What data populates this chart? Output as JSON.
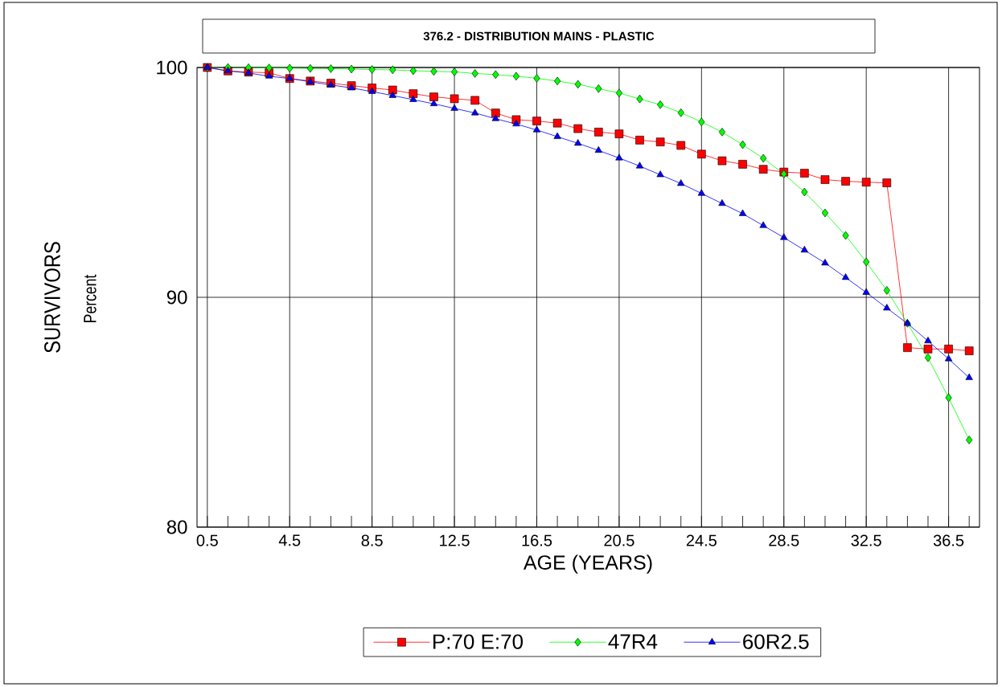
{
  "chart_data": {
    "type": "line",
    "title": "376.2 - DISTRIBUTION MAINS - PLASTIC",
    "xlabel": "AGE (YEARS)",
    "ylabel": "SURVIVORS",
    "annotations": [
      "Percent"
    ],
    "x": [
      0.5,
      1.5,
      2.5,
      3.5,
      4.5,
      5.5,
      6.5,
      7.5,
      8.5,
      9.5,
      10.5,
      11.5,
      12.5,
      13.5,
      14.5,
      15.5,
      16.5,
      17.5,
      18.5,
      19.5,
      20.5,
      21.5,
      22.5,
      23.5,
      24.5,
      25.5,
      26.5,
      27.5,
      28.5,
      29.5,
      30.5,
      31.5,
      32.5,
      33.5,
      34.5,
      35.5,
      36.5,
      37.5
    ],
    "series": [
      {
        "name": "P:70 E:70",
        "color": "#ff0000",
        "marker": "square",
        "values": [
          100,
          99.85,
          99.8,
          99.77,
          99.52,
          99.41,
          99.32,
          99.21,
          99.11,
          99.02,
          98.86,
          98.72,
          98.64,
          98.57,
          98.02,
          97.73,
          97.67,
          97.58,
          97.34,
          97.19,
          97.11,
          96.84,
          96.76,
          96.61,
          96.23,
          95.94,
          95.79,
          95.57,
          95.45,
          95.4,
          95.12,
          95.05,
          95.01,
          94.98,
          87.81,
          87.75,
          87.75,
          87.67
        ]
      },
      {
        "name": "47R4",
        "color": "#00ff00",
        "marker": "diamond",
        "values": [
          100,
          100,
          99.99,
          99.98,
          99.97,
          99.96,
          99.95,
          99.93,
          99.91,
          99.9,
          99.86,
          99.83,
          99.81,
          99.74,
          99.69,
          99.62,
          99.53,
          99.41,
          99.27,
          99.08,
          98.89,
          98.63,
          98.38,
          98.03,
          97.63,
          97.19,
          96.64,
          96.05,
          95.37,
          94.58,
          93.67,
          92.69,
          91.54,
          90.3,
          88.87,
          87.37,
          85.63,
          83.79
        ]
      },
      {
        "name": "60R2.5",
        "color": "#0000ff",
        "marker": "triangle",
        "values": [
          100,
          99.85,
          99.76,
          99.62,
          99.52,
          99.38,
          99.24,
          99.11,
          98.95,
          98.78,
          98.6,
          98.42,
          98.22,
          98.02,
          97.77,
          97.54,
          97.28,
          96.99,
          96.7,
          96.39,
          96.06,
          95.71,
          95.33,
          94.95,
          94.52,
          94.08,
          93.64,
          93.12,
          92.6,
          92.05,
          91.49,
          90.86,
          90.21,
          89.53,
          88.86,
          88.1,
          87.32,
          86.5
        ]
      }
    ],
    "xlim": [
      0,
      38
    ],
    "ylim": [
      80,
      100
    ],
    "xticks": [
      0.5,
      {
        "value": 1.5,
        "label": null
      },
      {
        "value": 2.5,
        "label": null
      },
      {
        "value": 3.5,
        "label": null
      },
      4.5,
      {
        "value": 5.5,
        "label": null
      },
      {
        "value": 6.5,
        "label": null
      },
      {
        "value": 7.5,
        "label": null
      },
      8.5,
      {
        "value": 9.5,
        "label": null
      },
      {
        "value": 10.5,
        "label": null
      },
      {
        "value": 11.5,
        "label": null
      },
      12.5,
      {
        "value": 13.5,
        "label": null
      },
      {
        "value": 14.5,
        "label": null
      },
      {
        "value": 15.5,
        "label": null
      },
      16.5,
      {
        "value": 17.5,
        "label": null
      },
      {
        "value": 18.5,
        "label": null
      },
      {
        "value": 19.5,
        "label": null
      },
      20.5,
      {
        "value": 21.5,
        "label": null
      },
      {
        "value": 22.5,
        "label": null
      },
      {
        "value": 23.5,
        "label": null
      },
      24.5,
      {
        "value": 25.5,
        "label": null
      },
      {
        "value": 26.5,
        "label": null
      },
      {
        "value": 27.5,
        "label": null
      },
      28.5,
      {
        "value": 29.5,
        "label": null
      },
      {
        "value": 30.5,
        "label": null
      },
      {
        "value": 31.5,
        "label": null
      },
      32.5,
      {
        "value": 33.5,
        "label": null
      },
      {
        "value": 34.5,
        "label": null
      },
      {
        "value": 35.5,
        "label": null
      },
      36.5,
      {
        "value": 37.5,
        "label": null
      }
    ],
    "yticks": [
      80,
      90,
      100
    ],
    "grid": true,
    "legend": "bottom",
    "line_style": "solid"
  }
}
